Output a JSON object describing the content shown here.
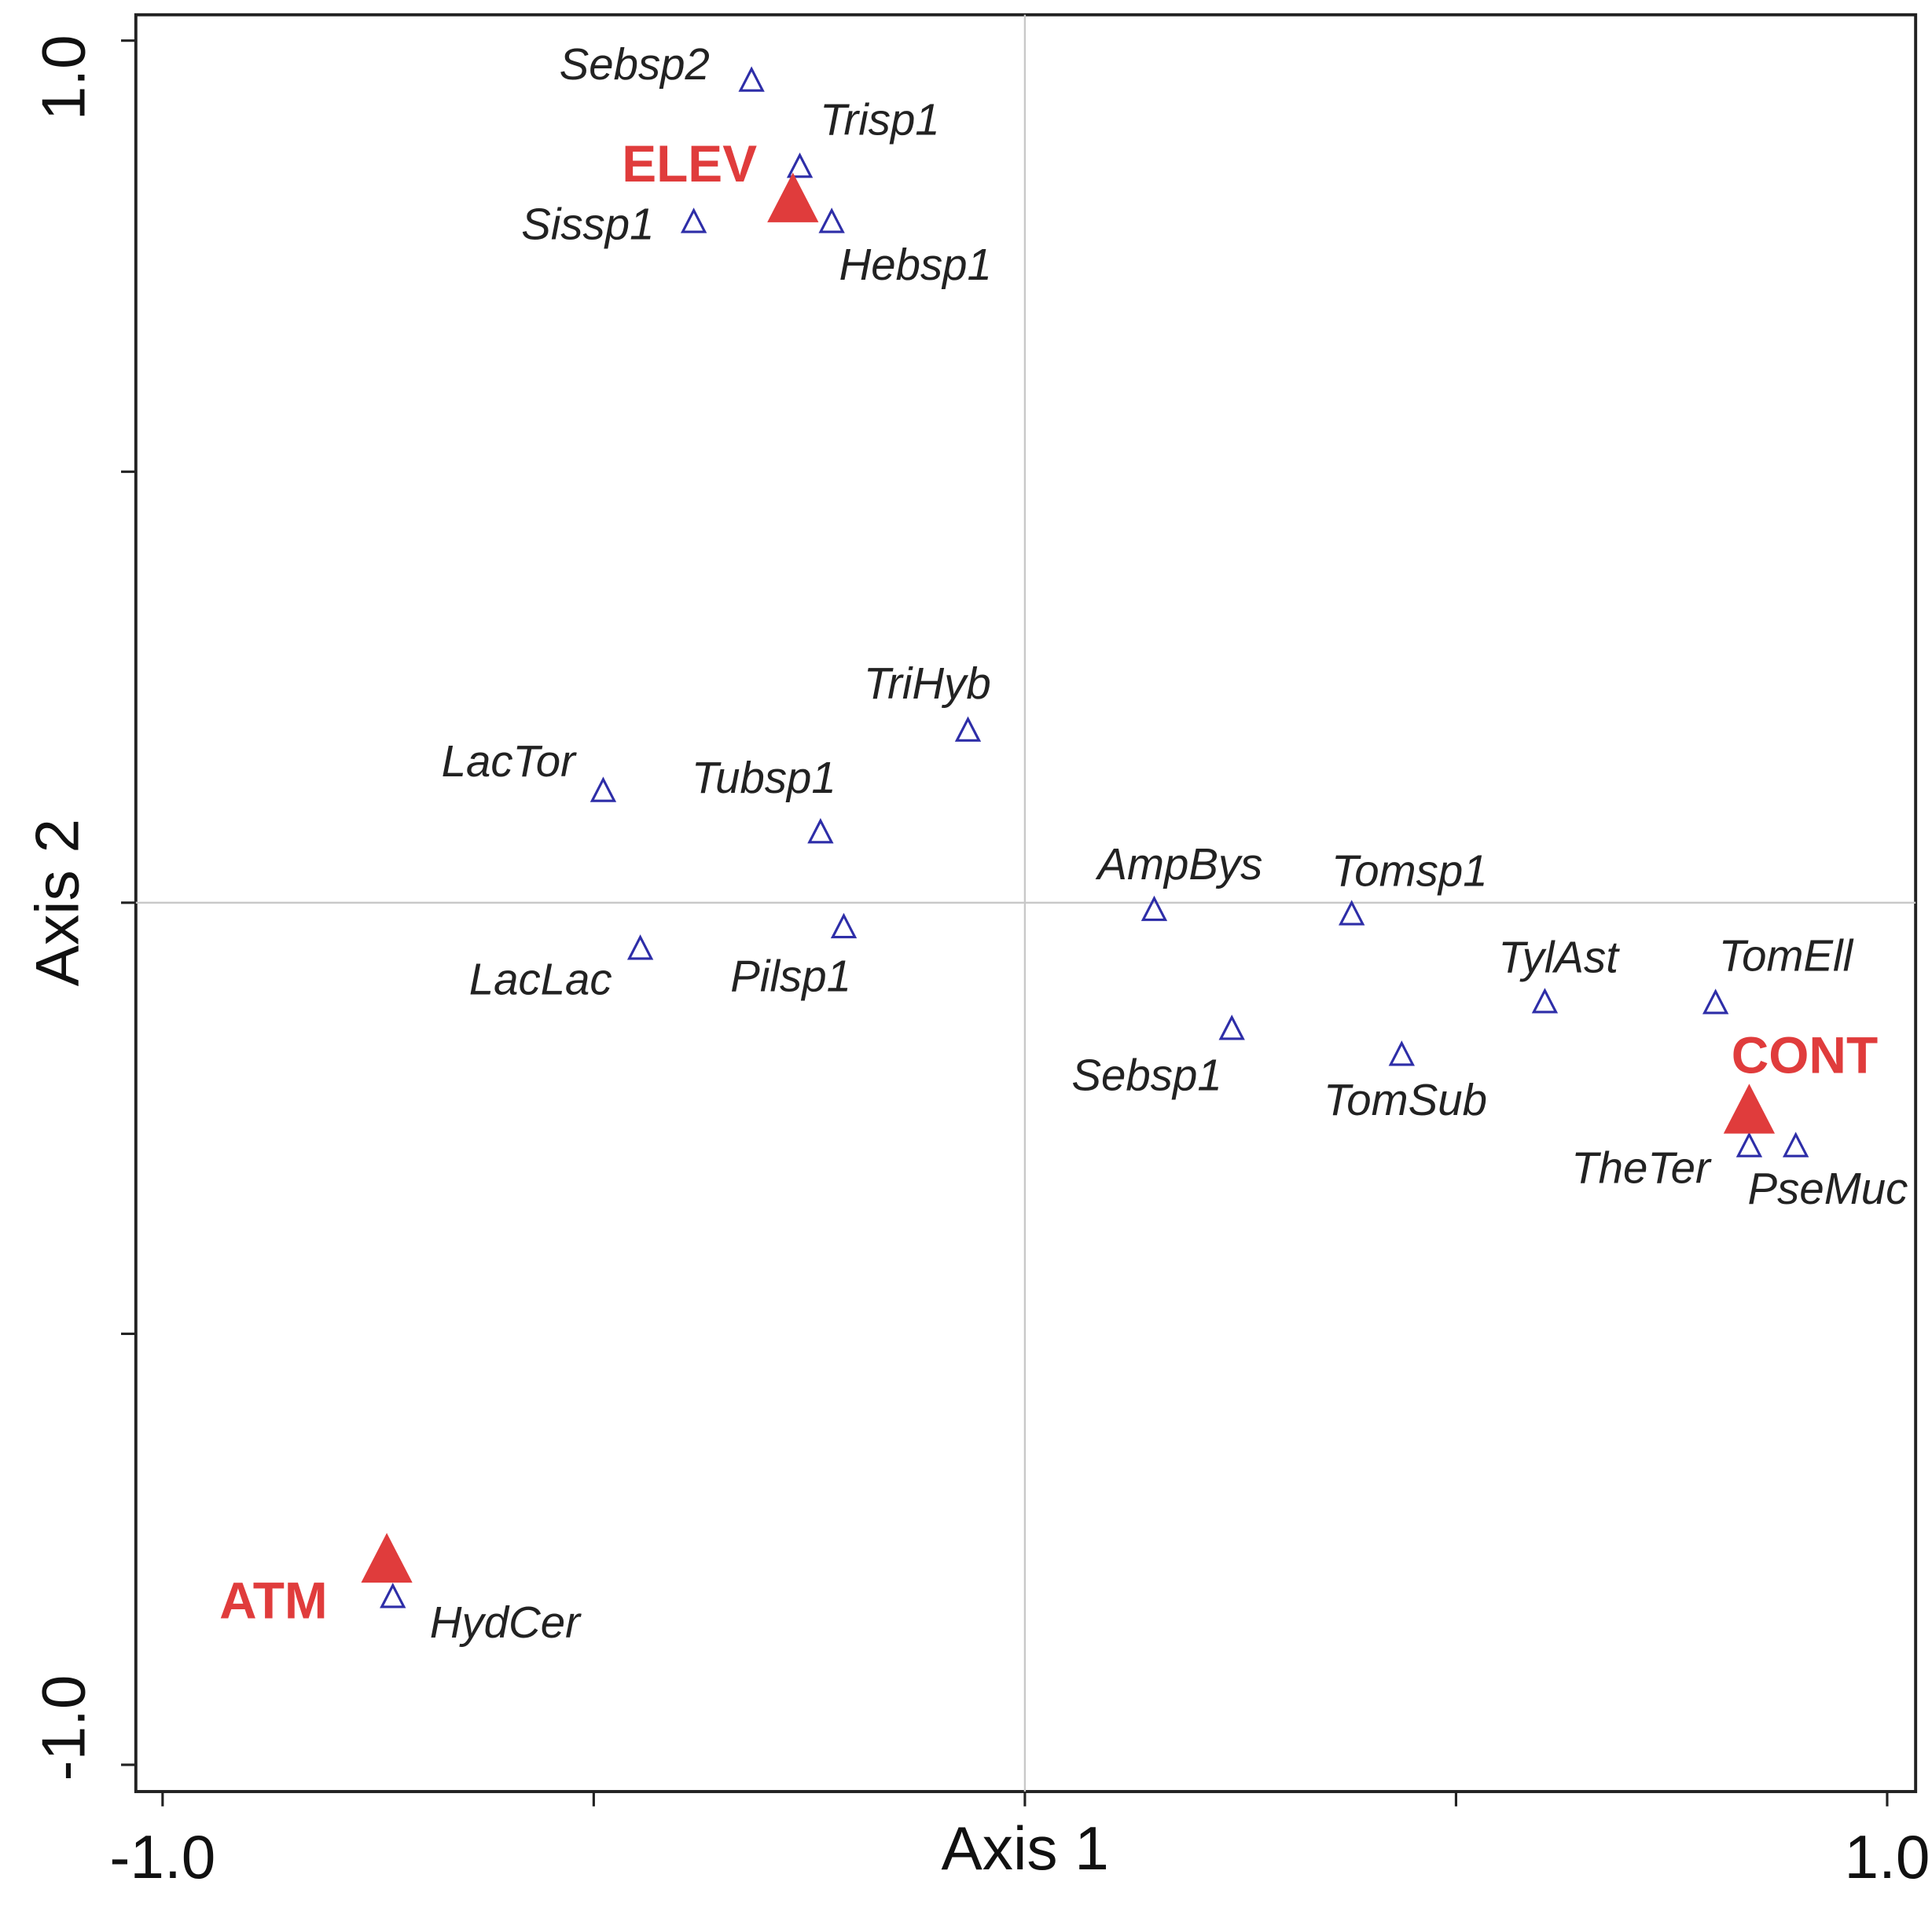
{
  "chart_data": {
    "type": "scatter",
    "x_label": "Axis 1",
    "y_label": "Axis 2",
    "xlim": [
      -1.031,
      1.033
    ],
    "ylim": [
      -1.031,
      1.03
    ],
    "xticks": [
      {
        "value": -1,
        "label": "-1.0"
      },
      -0.5,
      0,
      0.5,
      {
        "value": 1,
        "label": "1.0"
      }
    ],
    "yticks": [
      {
        "value": -1,
        "label": "-1.0"
      },
      -0.5,
      0,
      0.5,
      {
        "value": 1,
        "label": "1.0"
      }
    ],
    "zero_lines": true,
    "series": [
      {
        "color": "#2e2ea8",
        "marker": "open-triangle",
        "labels": [
          "Sebsp2",
          "Trisp1",
          "Sissp1",
          "Hebsp1",
          "TriHyb",
          "LacTor",
          "Tubsp1",
          "AmpBys",
          "Tomsp1",
          "LacLac",
          "Pilsp1",
          "TylAst",
          "TomEll",
          "Sebsp1",
          "TomSub",
          "TheTer",
          "PseMuc",
          "HydCer"
        ],
        "x": [
          -0.317,
          -0.261,
          -0.384,
          -0.224,
          -0.066,
          -0.489,
          -0.237,
          0.15,
          0.379,
          -0.446,
          -0.21,
          0.603,
          0.801,
          0.24,
          0.437,
          0.84,
          0.894,
          -0.733
        ],
        "values": [
          0.953,
          0.853,
          0.789,
          0.789,
          0.199,
          0.129,
          0.081,
          -0.009,
          -0.014,
          -0.054,
          -0.029,
          -0.116,
          -0.117,
          -0.147,
          -0.177,
          -0.283,
          -0.283,
          -0.806
        ]
      },
      {
        "color": "#e03c3c",
        "marker": "filled-triangle",
        "labels": [
          "ELEV",
          "CONT",
          "ATM"
        ],
        "x": [
          -0.269,
          0.84,
          -0.74
        ],
        "values": [
          0.814,
          -0.243,
          -0.764
        ]
      }
    ]
  }
}
